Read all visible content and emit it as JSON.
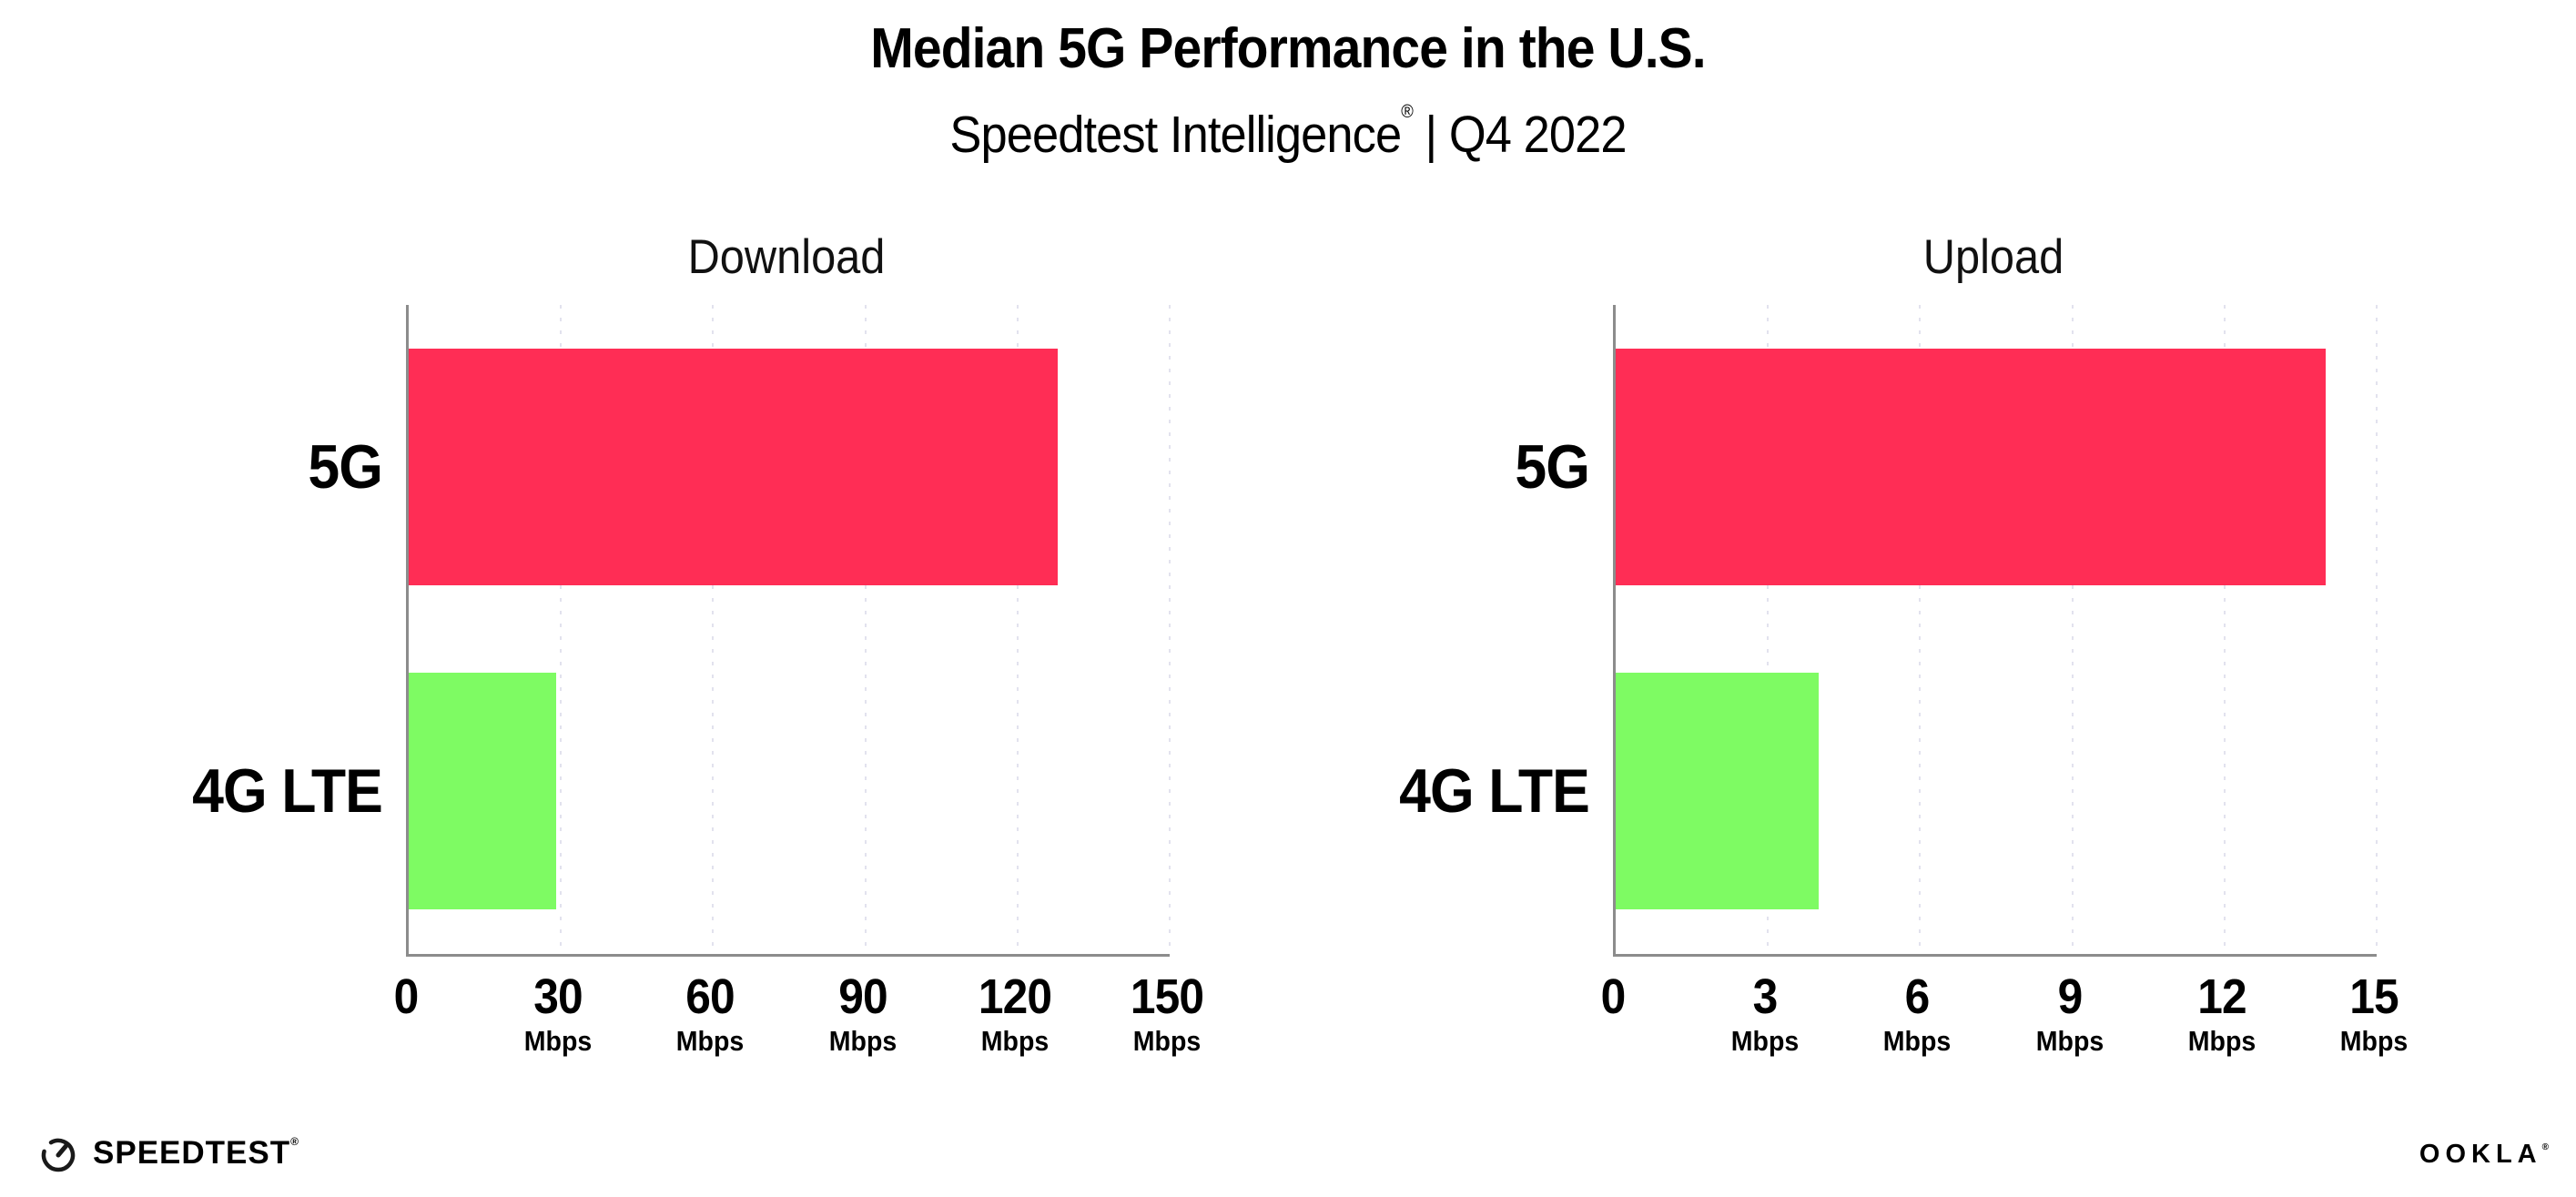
{
  "header": {
    "title": "Median 5G Performance in the U.S.",
    "subtitle_brand": "Speedtest Intelligence",
    "subtitle_reg": "®",
    "subtitle_rest": " | Q4 2022"
  },
  "footer": {
    "speedtest_logo_text": "SPEEDTEST",
    "speedtest_reg": "®",
    "ookla_logo_text": "OOKLA",
    "ookla_reg": "®",
    "gauge_icon": "speedtest-gauge-icon"
  },
  "colors": {
    "bar_5g": "#FF2D55",
    "bar_4g_lte": "#7EFB63",
    "axis": "#8C8C8C",
    "gridline": "#E2E2EE",
    "text": "#000000"
  },
  "chart_data": [
    {
      "type": "bar",
      "orientation": "horizontal",
      "title": "Download",
      "categories": [
        "5G",
        "4G LTE"
      ],
      "values": [
        128,
        29
      ],
      "unit": "Mbps",
      "xlabel": "",
      "ylabel": "",
      "xlim": [
        0,
        150
      ],
      "xticks": [
        0,
        30,
        60,
        90,
        120,
        150
      ],
      "grid": "vertical-dotted",
      "legend": "none"
    },
    {
      "type": "bar",
      "orientation": "horizontal",
      "title": "Upload",
      "categories": [
        "5G",
        "4G LTE"
      ],
      "values": [
        14,
        4
      ],
      "unit": "Mbps",
      "xlabel": "",
      "ylabel": "",
      "xlim": [
        0,
        15
      ],
      "xticks": [
        0,
        3,
        6,
        9,
        12,
        15
      ],
      "grid": "vertical-dotted",
      "legend": "none"
    }
  ]
}
